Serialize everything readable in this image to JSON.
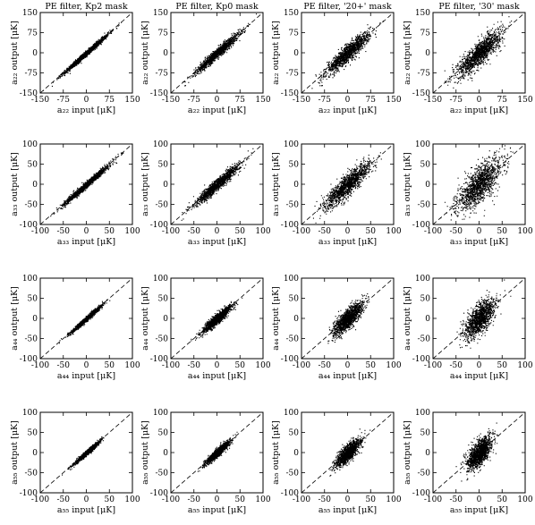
{
  "figure": {
    "grid": "4 rows x 4 columns of scatter plots",
    "column_titles": [
      "PE filter, Kp2 mask",
      "PE filter, Kp0 mask",
      "PE filter, '20+' mask",
      "PE filter, '30' mask"
    ],
    "unit": "[μK]"
  },
  "chart_data": [
    {
      "row": 0,
      "type": "scatter",
      "xlabel": "a₂₂ input  [μK]",
      "ylabel": "a₂₂ output  [μK]",
      "xlim": [
        -150,
        150
      ],
      "ylim": [
        -150,
        150
      ],
      "xticks": [
        -150,
        -75,
        0,
        75,
        150
      ],
      "yticks": [
        -150,
        -75,
        0,
        75,
        150
      ],
      "reference_line": "y = x (dashed)",
      "panels": [
        {
          "title": "PE filter, Kp2 mask",
          "input_sd": 35,
          "output_scatter_sd": 5
        },
        {
          "title": "PE filter, Kp0 mask",
          "input_sd": 35,
          "output_scatter_sd": 9
        },
        {
          "title": "PE filter, '20+' mask",
          "input_sd": 35,
          "output_scatter_sd": 15
        },
        {
          "title": "PE filter, '30' mask",
          "input_sd": 35,
          "output_scatter_sd": 22
        }
      ]
    },
    {
      "row": 1,
      "type": "scatter",
      "xlabel": "a₃₃ input  [μK]",
      "ylabel": "a₃₃ output  [μK]",
      "xlim": [
        -100,
        100
      ],
      "ylim": [
        -100,
        100
      ],
      "xticks": [
        -100,
        -50,
        0,
        50,
        100
      ],
      "yticks": [
        -100,
        -50,
        0,
        50,
        100
      ],
      "reference_line": "y = x (dashed)",
      "panels": [
        {
          "title": "",
          "input_sd": 24,
          "output_scatter_sd": 4
        },
        {
          "title": "",
          "input_sd": 24,
          "output_scatter_sd": 7
        },
        {
          "title": "",
          "input_sd": 24,
          "output_scatter_sd": 13
        },
        {
          "title": "",
          "input_sd": 24,
          "output_scatter_sd": 22
        }
      ]
    },
    {
      "row": 2,
      "type": "scatter",
      "xlabel": "a₄₄ input  [μK]",
      "ylabel": "a₄₄ output  [μK]",
      "xlim": [
        -100,
        100
      ],
      "ylim": [
        -100,
        100
      ],
      "xticks": [
        -100,
        -50,
        0,
        50,
        100
      ],
      "yticks": [
        -100,
        -50,
        0,
        50,
        100
      ],
      "reference_line": "y = x (dashed)",
      "panels": [
        {
          "title": "",
          "input_sd": 16,
          "output_scatter_sd": 3
        },
        {
          "title": "",
          "input_sd": 16,
          "output_scatter_sd": 6
        },
        {
          "title": "",
          "input_sd": 16,
          "output_scatter_sd": 12
        },
        {
          "title": "",
          "input_sd": 16,
          "output_scatter_sd": 18
        }
      ]
    },
    {
      "row": 3,
      "type": "scatter",
      "xlabel": "a₅₅ input  [μK]",
      "ylabel": "a₅₅ output  [μK]",
      "xlim": [
        -100,
        100
      ],
      "ylim": [
        -100,
        100
      ],
      "xticks": [
        -100,
        -50,
        0,
        50,
        100
      ],
      "yticks": [
        -100,
        -50,
        0,
        50,
        100
      ],
      "reference_line": "y = x (dashed)",
      "panels": [
        {
          "title": "",
          "input_sd": 13,
          "output_scatter_sd": 3
        },
        {
          "title": "",
          "input_sd": 13,
          "output_scatter_sd": 5
        },
        {
          "title": "",
          "input_sd": 13,
          "output_scatter_sd": 10
        },
        {
          "title": "",
          "input_sd": 13,
          "output_scatter_sd": 15
        }
      ]
    }
  ]
}
